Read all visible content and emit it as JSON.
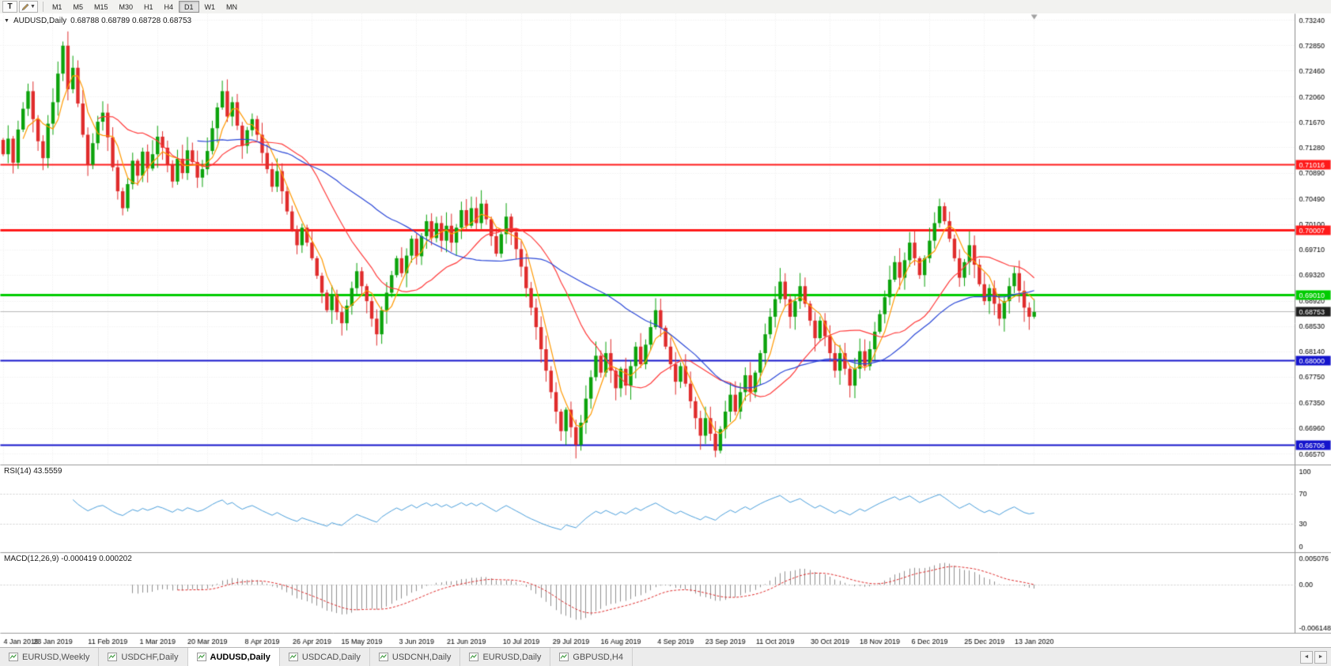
{
  "toolbar": {
    "text_tool": "T",
    "timeframes": [
      "M1",
      "M5",
      "M15",
      "M30",
      "H1",
      "H4",
      "D1",
      "W1",
      "MN"
    ],
    "active_timeframe": "D1"
  },
  "main_chart": {
    "header_symbol": "AUDUSD,Daily",
    "header_ohlc": "0.68788 0.68789 0.68728 0.68753",
    "price_min": 0.664,
    "price_max": 0.7334,
    "price_ticks": [
      "0.73240",
      "0.72850",
      "0.72460",
      "0.72060",
      "0.71670",
      "0.71280",
      "0.70890",
      "0.70490",
      "0.70100",
      "0.69710",
      "0.69320",
      "0.68920",
      "0.68530",
      "0.68140",
      "0.67750",
      "0.67350",
      "0.66960",
      "0.66570"
    ],
    "levels": [
      {
        "price": 0.71016,
        "label": "0.71016",
        "color": "#ff1a1a",
        "width": 2,
        "style": "line"
      },
      {
        "price": 0.70007,
        "label": "0.70007",
        "color": "#ff1a1a",
        "width": 3,
        "style": "line"
      },
      {
        "price": 0.6901,
        "label": "0.69010",
        "color": "#00cc00",
        "width": 3,
        "style": "line"
      },
      {
        "price": 0.68753,
        "label": "0.68753",
        "color": "#b8b8b8",
        "label_bg": "#1f1f1f",
        "width": 1,
        "style": "price"
      },
      {
        "price": 0.68,
        "label": "0.68000",
        "color": "#1414cc",
        "width": 2,
        "style": "line"
      },
      {
        "price": 0.66706,
        "label": "0.66706",
        "color": "#1414cc",
        "width": 2,
        "style": "line"
      }
    ]
  },
  "rsi": {
    "header": "RSI(14) 43.5559",
    "period": 14,
    "ticks": [
      "100",
      "70",
      "30",
      "0"
    ],
    "color": "#4a9fdc"
  },
  "macd": {
    "header": "MACD(12,26,9) -0.000419 0.000202",
    "fast": 12,
    "slow": 26,
    "signal": 9,
    "ticks": {
      "top": "0.005076",
      "zero": "0.00",
      "bottom": "-0.006148"
    },
    "hist_color": "#8f8f8f",
    "signal_color": "#e02c2c"
  },
  "dates": [
    "4 Jan 2019",
    "23 Jan 2019",
    "11 Feb 2019",
    "1 Mar 2019",
    "20 Mar 2019",
    "8 Apr 2019",
    "26 Apr 2019",
    "15 May 2019",
    "3 Jun 2019",
    "21 Jun 2019",
    "10 Jul 2019",
    "29 Jul 2019",
    "16 Aug 2019",
    "4 Sep 2019",
    "23 Sep 2019",
    "11 Oct 2019",
    "30 Oct 2019",
    "18 Nov 2019",
    "6 Dec 2019",
    "25 Dec 2019",
    "13 Jan 2020"
  ],
  "chart_data": {
    "type": "candlestick",
    "title": "AUDUSD,Daily",
    "ylim": [
      0.664,
      0.7334
    ],
    "up_color": "#0ca30c",
    "down_color": "#e02c2c",
    "moving_averages": [
      {
        "name": "fast",
        "period": 5,
        "color": "#ff9900"
      },
      {
        "name": "medium",
        "period": 20,
        "color": "#ff3b3b"
      },
      {
        "name": "slow",
        "period": 40,
        "color": "#2b48d8"
      }
    ],
    "closes": [
      0.7118,
      0.7142,
      0.7105,
      0.7156,
      0.7188,
      0.7215,
      0.7172,
      0.7138,
      0.7112,
      0.7165,
      0.7198,
      0.7242,
      0.7285,
      0.7218,
      0.7251,
      0.7196,
      0.7148,
      0.7102,
      0.7135,
      0.7168,
      0.7182,
      0.7144,
      0.7098,
      0.7061,
      0.7035,
      0.7072,
      0.7108,
      0.7085,
      0.7122,
      0.7096,
      0.7118,
      0.7145,
      0.7128,
      0.7102,
      0.7076,
      0.7111,
      0.7089,
      0.7124,
      0.7106,
      0.7082,
      0.7095,
      0.7123,
      0.7158,
      0.719,
      0.7215,
      0.7176,
      0.7198,
      0.7162,
      0.7131,
      0.7155,
      0.7172,
      0.7148,
      0.712,
      0.7095,
      0.7068,
      0.7092,
      0.7061,
      0.703,
      0.7002,
      0.6978,
      0.7005,
      0.6982,
      0.6958,
      0.6931,
      0.6905,
      0.6878,
      0.6902,
      0.6875,
      0.6858,
      0.6885,
      0.6912,
      0.6938,
      0.6915,
      0.6892,
      0.6865,
      0.6841,
      0.6878,
      0.6905,
      0.6932,
      0.6958,
      0.6935,
      0.6962,
      0.6988,
      0.6961,
      0.6992,
      0.7015,
      0.6989,
      0.7012,
      0.6985,
      0.7008,
      0.6982,
      0.7005,
      0.7032,
      0.7008,
      0.7035,
      0.7012,
      0.7042,
      0.7018,
      0.6992,
      0.6965,
      0.6995,
      0.7022,
      0.6998,
      0.6972,
      0.6945,
      0.6912,
      0.6882,
      0.6852,
      0.6818,
      0.6785,
      0.6752,
      0.6722,
      0.6692,
      0.6725,
      0.6698,
      0.6671,
      0.6705,
      0.6742,
      0.6775,
      0.6808,
      0.6782,
      0.6812,
      0.6785,
      0.6758,
      0.6788,
      0.6762,
      0.6792,
      0.6822,
      0.6795,
      0.6825,
      0.6852,
      0.6878,
      0.6851,
      0.6822,
      0.6795,
      0.6768,
      0.6792,
      0.6765,
      0.6738,
      0.6712,
      0.6685,
      0.6712,
      0.6688,
      0.6662,
      0.6695,
      0.6722,
      0.6748,
      0.6722,
      0.6752,
      0.6778,
      0.6752,
      0.6782,
      0.6812,
      0.6841,
      0.6868,
      0.6895,
      0.6922,
      0.6895,
      0.6868,
      0.6892,
      0.6915,
      0.6888,
      0.6862,
      0.6835,
      0.6862,
      0.6838,
      0.6812,
      0.6785,
      0.6812,
      0.6788,
      0.6762,
      0.6788,
      0.6815,
      0.6792,
      0.6818,
      0.6845,
      0.6872,
      0.6898,
      0.6925,
      0.6952,
      0.6928,
      0.6955,
      0.6982,
      0.6958,
      0.6932,
      0.6958,
      0.6985,
      0.7012,
      0.7038,
      0.7015,
      0.6988,
      0.6958,
      0.6928,
      0.6952,
      0.6978,
      0.6948,
      0.6918,
      0.6892,
      0.6912,
      0.6888,
      0.6865,
      0.6892,
      0.6915,
      0.6935,
      0.6908,
      0.6882,
      0.6868,
      0.68753
    ]
  },
  "tabs": {
    "items": [
      {
        "label": "EURUSD,Weekly",
        "active": false
      },
      {
        "label": "USDCHF,Daily",
        "active": false
      },
      {
        "label": "AUDUSD,Daily",
        "active": true
      },
      {
        "label": "USDCAD,Daily",
        "active": false
      },
      {
        "label": "USDCNH,Daily",
        "active": false
      },
      {
        "label": "EURUSD,Daily",
        "active": false
      },
      {
        "label": "GBPUSD,H4",
        "active": false
      }
    ],
    "scroll_left": "◄",
    "scroll_right": "►"
  }
}
